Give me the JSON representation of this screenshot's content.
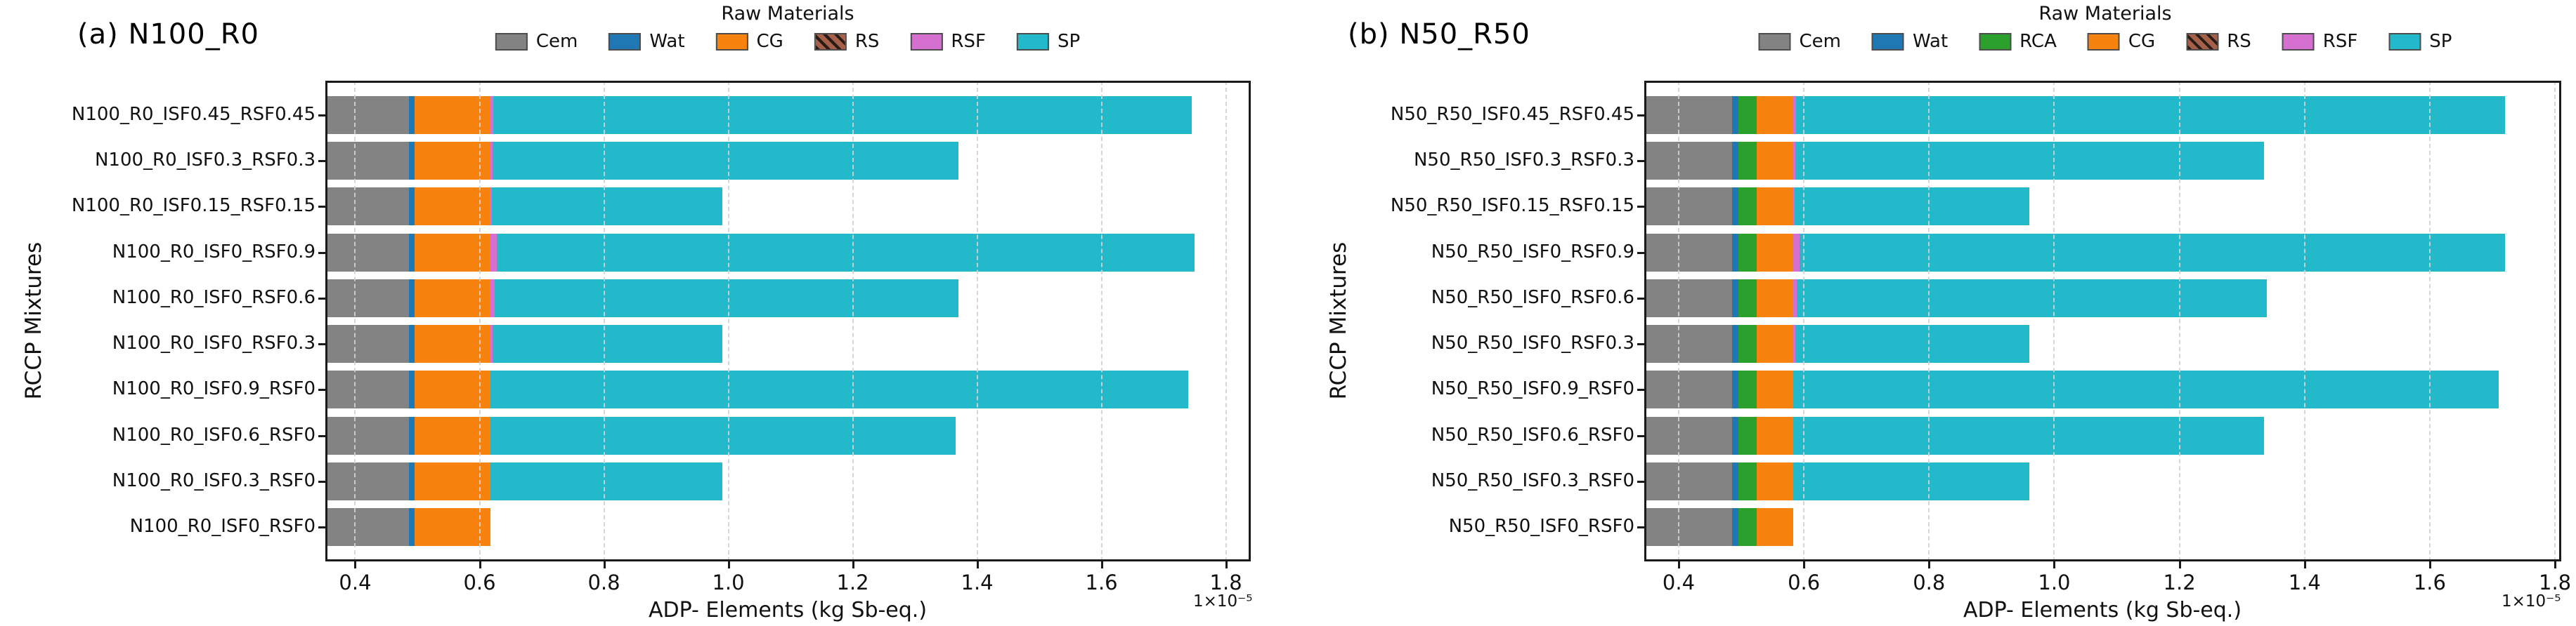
{
  "figure": {
    "background": "#ffffff",
    "units_offset": "1×10⁻⁵"
  },
  "colors": {
    "Cem": "#838383",
    "Wat": "#1f77b4",
    "RCA": "#2ca02c",
    "CG": "#f8820e",
    "RS": "#a5604a",
    "RSF": "#d56fd0",
    "SP": "#22b9ca",
    "rs_hatch_stripe": "#2b1b16",
    "grid": "#d2d2d2",
    "spine": "#1a1a1a"
  },
  "chart_data": [
    {
      "type": "bar",
      "orientation": "horizontal",
      "stacked": true,
      "panel_label": "(a) N100_R0",
      "legend_title": "Raw Materials",
      "legend": [
        "Cem",
        "Wat",
        "CG",
        "RS",
        "RSF",
        "SP"
      ],
      "ylabel": "RCCP Mixtures",
      "xlabel": "ADP- Elements (kg Sb-eq.)",
      "offset_label": "1×10⁻⁵",
      "value_scale": "1e-5 kg Sb-eq.",
      "xticks": [
        "0.4",
        "0.6",
        "0.8",
        "1.0",
        "1.2",
        "1.4",
        "1.6",
        "1.8"
      ],
      "xlim": [
        0.352,
        1.84
      ],
      "grid": true,
      "categories": [
        "N100_R0_ISF0.45_RSF0.45",
        "N100_R0_ISF0.3_RSF0.3",
        "N100_R0_ISF0.15_RSF0.15",
        "N100_R0_ISF0_RSF0.9",
        "N100_R0_ISF0_RSF0.6",
        "N100_R0_ISF0_RSF0.3",
        "N100_R0_ISF0.9_RSF0",
        "N100_R0_ISF0.6_RSF0",
        "N100_R0_ISF0.3_RSF0",
        "N100_R0_ISF0_RSF0"
      ],
      "series": [
        {
          "name": "Cem",
          "values": [
            0.486,
            0.486,
            0.486,
            0.486,
            0.486,
            0.486,
            0.486,
            0.486,
            0.486,
            0.486
          ]
        },
        {
          "name": "Wat",
          "values": [
            0.01,
            0.01,
            0.01,
            0.01,
            0.01,
            0.01,
            0.01,
            0.01,
            0.01,
            0.01
          ]
        },
        {
          "name": "CG",
          "values": [
            0.122,
            0.122,
            0.122,
            0.122,
            0.122,
            0.122,
            0.122,
            0.122,
            0.122,
            0.122
          ]
        },
        {
          "name": "RS",
          "values": [
            0,
            0,
            0,
            0,
            0,
            0,
            0,
            0,
            0,
            0
          ]
        },
        {
          "name": "RSF",
          "values": [
            0.004,
            0.003,
            0.002,
            0.01,
            0.006,
            0.003,
            0,
            0,
            0,
            0
          ]
        },
        {
          "name": "SP",
          "values": [
            1.123,
            0.749,
            0.37,
            1.122,
            0.746,
            0.369,
            1.122,
            0.747,
            0.372,
            0
          ]
        }
      ],
      "bar_totals": [
        1.745,
        1.37,
        0.99,
        1.75,
        1.37,
        0.99,
        1.74,
        1.365,
        0.99,
        0.618
      ]
    },
    {
      "type": "bar",
      "orientation": "horizontal",
      "stacked": true,
      "panel_label": "(b) N50_R50",
      "legend_title": "Raw Materials",
      "legend": [
        "Cem",
        "Wat",
        "RCA",
        "CG",
        "RS",
        "RSF",
        "SP"
      ],
      "ylabel": "RCCP Mixtures",
      "xlabel": "ADP- Elements (kg Sb-eq.)",
      "offset_label": "1×10⁻⁵",
      "value_scale": "1e-5 kg Sb-eq.",
      "xticks": [
        "0.4",
        "0.6",
        "0.8",
        "1.0",
        "1.2",
        "1.4",
        "1.6",
        "1.8"
      ],
      "xlim": [
        0.345,
        1.81
      ],
      "grid": true,
      "categories": [
        "N50_R50_ISF0.45_RSF0.45",
        "N50_R50_ISF0.3_RSF0.3",
        "N50_R50_ISF0.15_RSF0.15",
        "N50_R50_ISF0_RSF0.9",
        "N50_R50_ISF0_RSF0.6",
        "N50_R50_ISF0_RSF0.3",
        "N50_R50_ISF0.9_RSF0",
        "N50_R50_ISF0.6_RSF0",
        "N50_R50_ISF0.3_RSF0",
        "N50_R50_ISF0_RSF0"
      ],
      "series": [
        {
          "name": "Cem",
          "values": [
            0.485,
            0.485,
            0.485,
            0.485,
            0.485,
            0.485,
            0.485,
            0.485,
            0.485,
            0.485
          ]
        },
        {
          "name": "Wat",
          "values": [
            0.0105,
            0.0105,
            0.0105,
            0.0105,
            0.0105,
            0.0105,
            0.0105,
            0.0105,
            0.0105,
            0.0105
          ]
        },
        {
          "name": "RCA",
          "values": [
            0.0295,
            0.0295,
            0.0295,
            0.0295,
            0.0295,
            0.0295,
            0.0295,
            0.0295,
            0.0295,
            0.0295
          ]
        },
        {
          "name": "CG",
          "values": [
            0.058,
            0.058,
            0.058,
            0.058,
            0.058,
            0.058,
            0.058,
            0.058,
            0.058,
            0.058
          ]
        },
        {
          "name": "RS",
          "values": [
            0,
            0,
            0,
            0,
            0,
            0,
            0,
            0,
            0,
            0
          ]
        },
        {
          "name": "RSF",
          "values": [
            0.004,
            0.003,
            0.002,
            0.01,
            0.006,
            0.003,
            0,
            0,
            0,
            0
          ]
        },
        {
          "name": "SP",
          "values": [
            1.133,
            0.749,
            0.375,
            1.127,
            0.751,
            0.374,
            1.127,
            0.752,
            0.377,
            0
          ]
        }
      ],
      "bar_totals": [
        1.72,
        1.335,
        0.96,
        1.72,
        1.34,
        0.96,
        1.71,
        1.335,
        0.96,
        0.583
      ]
    }
  ]
}
